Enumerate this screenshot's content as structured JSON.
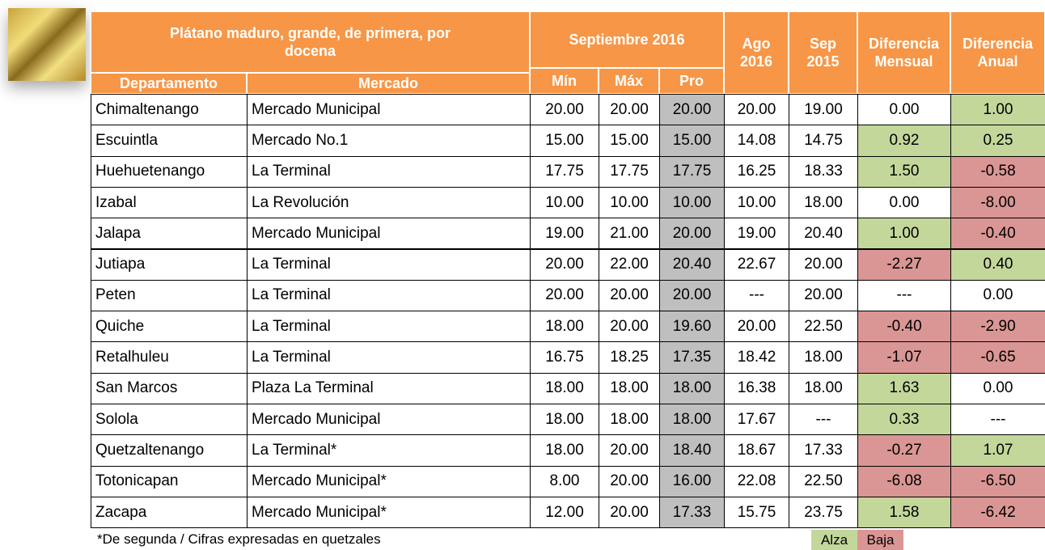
{
  "header": {
    "title": "Plátano maduro, grande, de primera, por docena",
    "period": "Septiembre 2016",
    "columns": [
      "Departamento",
      "Mercado",
      "Mín",
      "Máx",
      "Pro",
      "Ago 2016",
      "Sep 2015",
      "Diferencia Mensual",
      "Diferencia Anual"
    ]
  },
  "table": {
    "rows": [
      [
        "Chimaltenango",
        "Mercado Municipal",
        "20.00",
        "20.00",
        "20.00",
        "20.00",
        "19.00",
        "0.00",
        "1.00"
      ],
      [
        "Escuintla",
        "Mercado No.1",
        "15.00",
        "15.00",
        "15.00",
        "14.08",
        "14.75",
        "0.92",
        "0.25"
      ],
      [
        "Huehuetenango",
        "La Terminal",
        "17.75",
        "17.75",
        "17.75",
        "16.25",
        "18.33",
        "1.50",
        "-0.58"
      ],
      [
        "Izabal",
        "La Revolución",
        "10.00",
        "10.00",
        "10.00",
        "10.00",
        "18.00",
        "0.00",
        "-8.00"
      ],
      [
        "Jalapa",
        "Mercado Municipal",
        "19.00",
        "21.00",
        "20.00",
        "19.00",
        "20.40",
        "1.00",
        "-0.40"
      ],
      [
        "Jutiapa",
        "La Terminal",
        "20.00",
        "22.00",
        "20.40",
        "22.67",
        "20.00",
        "-2.27",
        "0.40"
      ],
      [
        "Peten",
        "La Terminal",
        "20.00",
        "20.00",
        "20.00",
        "---",
        "20.00",
        "---",
        "0.00"
      ],
      [
        "Quiche",
        "La Terminal",
        "18.00",
        "20.00",
        "19.60",
        "20.00",
        "22.50",
        "-0.40",
        "-2.90"
      ],
      [
        "Retalhuleu",
        "La Terminal",
        "16.75",
        "18.25",
        "17.35",
        "18.42",
        "18.00",
        "-1.07",
        "-0.65"
      ],
      [
        "San Marcos",
        "Plaza La Terminal",
        "18.00",
        "18.00",
        "18.00",
        "16.38",
        "18.00",
        "1.63",
        "0.00"
      ],
      [
        "Solola",
        "Mercado Municipal",
        "18.00",
        "18.00",
        "18.00",
        "17.67",
        "---",
        "0.33",
        "---"
      ],
      [
        "Quetzaltenango",
        "La Terminal*",
        "18.00",
        "20.00",
        "18.40",
        "18.67",
        "17.33",
        "-0.27",
        "1.07"
      ],
      [
        "Totonicapan",
        "Mercado Municipal*",
        "8.00",
        "20.00",
        "16.00",
        "22.08",
        "22.50",
        "-6.08",
        "-6.50"
      ],
      [
        "Zacapa",
        "Mercado Municipal*",
        "12.00",
        "20.00",
        "17.33",
        "15.75",
        "23.75",
        "1.58",
        "-6.42"
      ]
    ]
  },
  "footnote": "*De segunda / Cifras expresadas en quetzales",
  "legend": [
    {
      "label": "Alza",
      "color": "#c4d79b"
    },
    {
      "label": "Baja",
      "color": "#da9694"
    }
  ]
}
